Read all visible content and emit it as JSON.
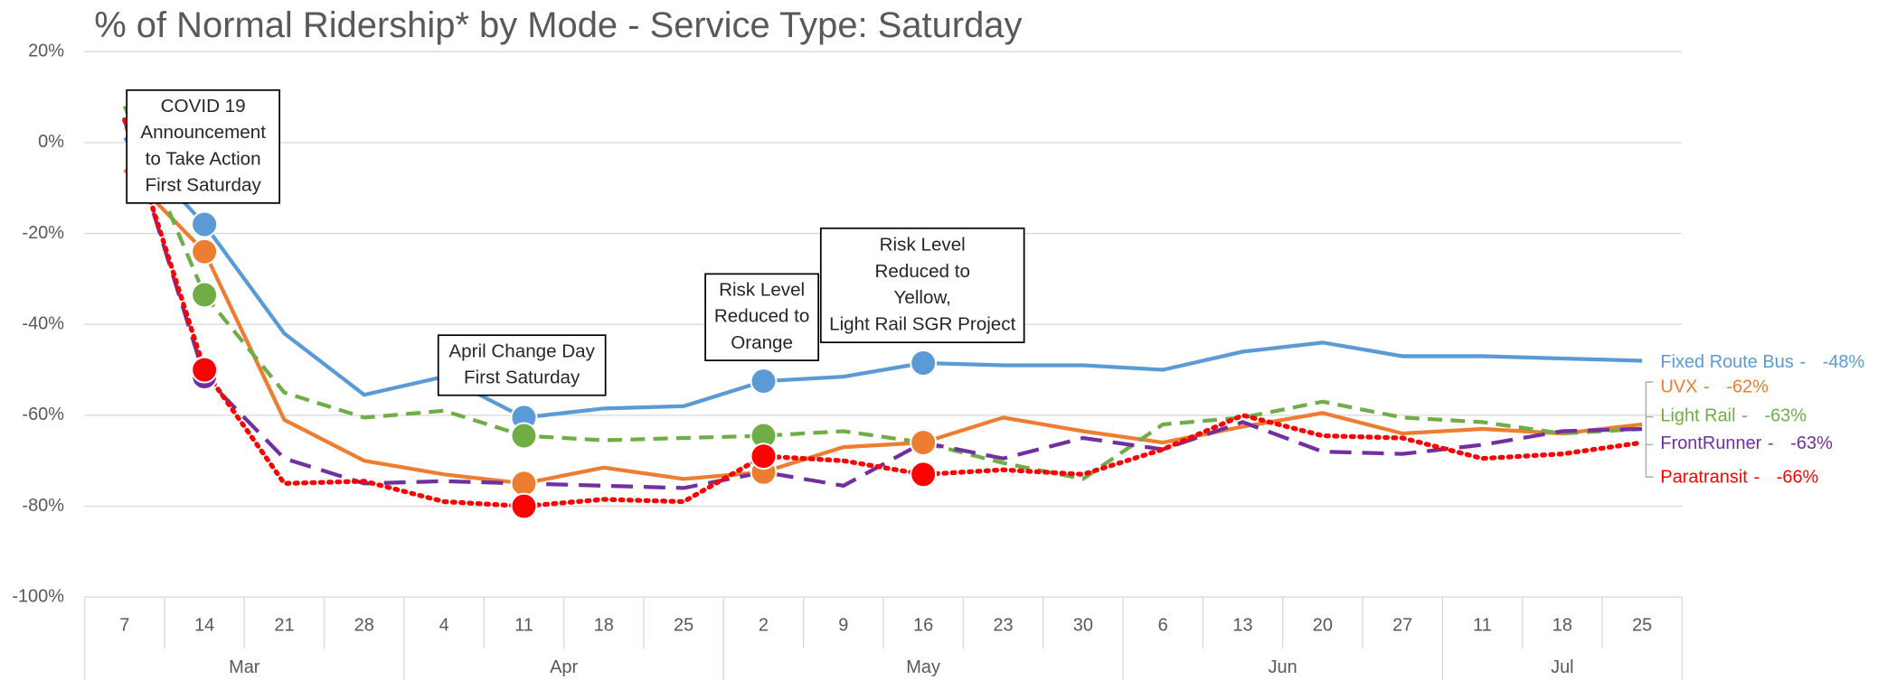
{
  "chart_data": {
    "type": "line",
    "title": "% of Normal Ridership* by Mode - Service Type: Saturday",
    "categories": [
      "7",
      "14",
      "21",
      "28",
      "4",
      "11",
      "18",
      "25",
      "2",
      "9",
      "16",
      "23",
      "30",
      "6",
      "13",
      "20",
      "27",
      "11",
      "18",
      "25"
    ],
    "groups": [
      {
        "label": "Mar",
        "span": 4
      },
      {
        "label": "Apr",
        "span": 4
      },
      {
        "label": "May",
        "span": 5
      },
      {
        "label": "Jun",
        "span": 4
      },
      {
        "label": "Jul",
        "span": 3
      }
    ],
    "ylim": [
      -100,
      20
    ],
    "yticks": [
      {
        "value": 20,
        "label": "20%"
      },
      {
        "value": 0,
        "label": "0%"
      },
      {
        "value": -20,
        "label": "-20%"
      },
      {
        "value": -40,
        "label": "-40%"
      },
      {
        "value": -60,
        "label": "-60%"
      },
      {
        "value": -80,
        "label": "-80%"
      },
      {
        "value": -100,
        "label": "-100%"
      }
    ],
    "grid": true,
    "label_separator": "-",
    "series": [
      {
        "name": "Fixed Route Bus",
        "color": "#5b9bd5",
        "dash": "solid",
        "markers": [
          1,
          5,
          8,
          10
        ],
        "end_label": "-48%",
        "values": [
          1,
          -18,
          -42,
          -55.5,
          -51.5,
          -60.5,
          -58.5,
          -58,
          -52.5,
          -51.5,
          -48.5,
          -49,
          -49,
          -50,
          -46,
          -44,
          -47,
          -47,
          -47.5,
          -48
        ]
      },
      {
        "name": "UVX",
        "color": "#ed7d31",
        "dash": "solid",
        "markers": [
          1,
          5,
          8,
          10
        ],
        "end_label": "-62%",
        "values": [
          -6,
          -24,
          -61,
          -70,
          -73,
          -75,
          -71.5,
          -74,
          -72.5,
          -67,
          -66,
          -60.5,
          -63.5,
          -66,
          -62.5,
          -59.5,
          -64,
          -63,
          -64,
          -62
        ]
      },
      {
        "name": "Light Rail",
        "color": "#70ad47",
        "dash": "dashed",
        "markers": [
          1,
          5,
          8
        ],
        "end_label": "-63%",
        "values": [
          8,
          -33.5,
          -55,
          -60.5,
          -59,
          -64.5,
          -65.5,
          -65,
          -64.5,
          -63.5,
          -66,
          -70.5,
          -74,
          -62,
          -60.5,
          -57,
          -60.5,
          -61.5,
          -64,
          -63
        ]
      },
      {
        "name": "FrontRunner",
        "color": "#7030a0",
        "dash": "longdash",
        "markers": [
          1
        ],
        "end_label": "-63%",
        "values": [
          5,
          -51.5,
          -69.5,
          -75,
          -74.5,
          -75,
          -75.5,
          -76,
          -72.5,
          -75.5,
          -66,
          -69.5,
          -65,
          -67.5,
          -61.5,
          -68,
          -68.5,
          -66.5,
          -63.5,
          -63
        ]
      },
      {
        "name": "Paratransit",
        "color": "#ff0000",
        "dash": "dotted",
        "markers": [
          1,
          5,
          8,
          10
        ],
        "end_label": "-66%",
        "values": [
          5,
          -50,
          -75,
          -74.5,
          -79,
          -80,
          -78.5,
          -79,
          -69,
          -70,
          -73,
          -72,
          -73,
          -67.5,
          -60,
          -64.5,
          -65,
          -69.5,
          -68.5,
          -66
        ]
      }
    ],
    "annotations": [
      {
        "lines": [
          "COVID 19",
          "Announcement",
          "to Take Action",
          "First Saturday"
        ]
      },
      {
        "lines": [
          "April Change Day",
          "First Saturday"
        ]
      },
      {
        "lines": [
          "Risk Level",
          "Reduced to",
          "Orange"
        ]
      },
      {
        "lines": [
          "Risk Level",
          "Reduced to",
          "Yellow,",
          "Light Rail SGR Project"
        ]
      }
    ]
  }
}
